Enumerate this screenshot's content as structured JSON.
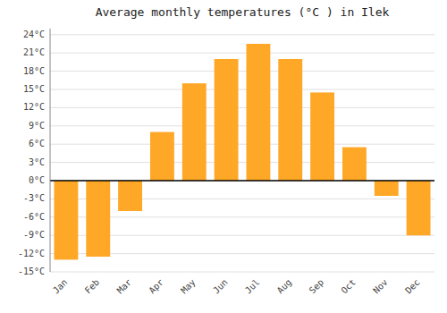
{
  "chart_data": {
    "type": "bar",
    "title": "Average monthly temperatures (°C ) in Ilek",
    "categories": [
      "Jan",
      "Feb",
      "Mar",
      "Apr",
      "May",
      "Jun",
      "Jul",
      "Aug",
      "Sep",
      "Oct",
      "Nov",
      "Dec"
    ],
    "values": [
      -13,
      -12.5,
      -5,
      8,
      16,
      20,
      22.5,
      20,
      14.5,
      5.5,
      -2.5,
      -9
    ],
    "color": "#FFA726",
    "ylim": [
      -15,
      25
    ],
    "yticks": [
      {
        "value": -15,
        "label": "-15°C"
      },
      {
        "value": -12,
        "label": "-12°C"
      },
      {
        "value": -9,
        "label": "-9°C"
      },
      {
        "value": -6,
        "label": "-6°C"
      },
      {
        "value": -3,
        "label": "-3°C"
      },
      {
        "value": 0,
        "label": "0°C"
      },
      {
        "value": 3,
        "label": "3°C"
      },
      {
        "value": 6,
        "label": "6°C"
      },
      {
        "value": 9,
        "label": "9°C"
      },
      {
        "value": 12,
        "label": "12°C"
      },
      {
        "value": 15,
        "label": "15°C"
      },
      {
        "value": 18,
        "label": "18°C"
      },
      {
        "value": 21,
        "label": "21°C"
      },
      {
        "value": 24,
        "label": "24°C"
      }
    ],
    "grid": true
  }
}
